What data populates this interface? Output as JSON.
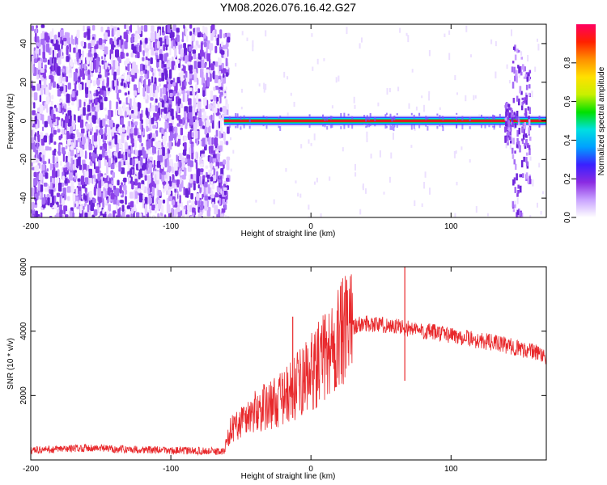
{
  "colors": {
    "snr_line": "#e8282b",
    "scatter": "#7a2fe0",
    "band_core": "#d82020",
    "band_edge": "#20c060"
  },
  "chart_data": [
    {
      "type": "heatmap",
      "title": "YM08.2026.076.16.42.G27",
      "xlabel": "Height of straight line (km)",
      "ylabel": "Frequency (Hz)",
      "xlim": [
        -200,
        168
      ],
      "ylim": [
        -50,
        50
      ],
      "xticks": [
        "-200",
        "-100",
        "0",
        "100"
      ],
      "yticks": [
        "-40",
        "-20",
        "0",
        "20",
        "40"
      ],
      "colorbar": {
        "label": "Normalized spectral amplitude",
        "range": [
          0,
          1
        ],
        "ticks": [
          "0.0",
          "0.2",
          "0.4",
          "0.6",
          "0.8"
        ],
        "colormap": [
          "#ffffff",
          "#c9a3ff",
          "#8a2be2",
          "#3a20ff",
          "#00a0ff",
          "#00e0e0",
          "#00e000",
          "#c8f000",
          "#ffe000",
          "#ff9000",
          "#ff2000",
          "#ff0060"
        ]
      },
      "noise_region_x": [
        -200,
        -60
      ],
      "tone_band": {
        "x": [
          -62,
          168
        ],
        "frequency": 0
      },
      "features": [
        {
          "x": [
            138,
            143
          ],
          "y": [
            -10,
            10
          ]
        },
        {
          "x": [
            143,
            150
          ],
          "y": [
            -48,
            40
          ]
        },
        {
          "x": [
            150,
            156
          ],
          "y": [
            -30,
            30
          ]
        }
      ]
    },
    {
      "type": "line",
      "xlabel": "Height of straight line (km)",
      "ylabel": "SNR (10 * v/v)",
      "xlim": [
        -200,
        168
      ],
      "ylim": [
        0,
        6000
      ],
      "xticks": [
        "-200",
        "-100",
        "0",
        "100"
      ],
      "yticks": [
        "2000",
        "4000",
        "6000"
      ],
      "series": [
        {
          "x": [
            -200,
            -180,
            -160,
            -140,
            -120,
            -100,
            -80,
            -62,
            -58,
            -50,
            -40,
            -30,
            -20,
            -10,
            0,
            10,
            20,
            30,
            40,
            50,
            60,
            70,
            80,
            90,
            100,
            110,
            120,
            130,
            140,
            150,
            160,
            168
          ],
          "values": [
            300,
            330,
            380,
            340,
            320,
            290,
            280,
            260,
            900,
            1200,
            1500,
            1700,
            1900,
            2300,
            2700,
            3200,
            3800,
            4150,
            4250,
            4200,
            4150,
            4080,
            4000,
            3950,
            3880,
            3800,
            3700,
            3650,
            3550,
            3450,
            3350,
            3250
          ]
        }
      ],
      "spikes": [
        {
          "x": -13,
          "y": 4450
        },
        {
          "x": 67,
          "y": 6000
        }
      ]
    }
  ]
}
